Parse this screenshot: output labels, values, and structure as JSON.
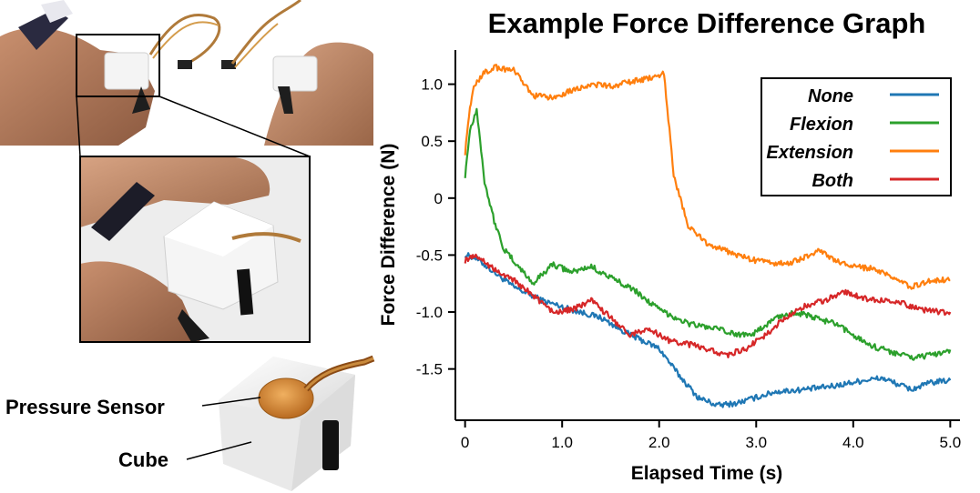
{
  "photo_panel": {
    "callouts": {
      "pressure_sensor": "Pressure Sensor",
      "cube": "Cube"
    }
  },
  "chart_data": {
    "type": "line",
    "title": "Example Force Difference Graph",
    "xlabel": "Elapsed Time (s)",
    "ylabel": "Force Difference (N)",
    "xlim": [
      -0.1,
      5.1
    ],
    "ylim": [
      -1.95,
      1.3
    ],
    "xticks": [
      0,
      1,
      2,
      3,
      4,
      5
    ],
    "xtick_labels": [
      "0",
      "1.0",
      "2.0",
      "3.0",
      "4.0",
      "5.0"
    ],
    "yticks": [
      1.0,
      0.5,
      0,
      -0.5,
      -1.0,
      -1.5
    ],
    "ytick_labels": [
      "1.0",
      "0.5",
      "0",
      "-0.5",
      "-1.0",
      "-1.5"
    ],
    "grid": false,
    "legend_position": "top-right",
    "series": [
      {
        "name": "None",
        "color": "#1f77b4",
        "x": [
          0,
          0.1,
          0.3,
          0.5,
          0.8,
          1.1,
          1.4,
          1.7,
          2.0,
          2.2,
          2.4,
          2.6,
          2.8,
          3.0,
          3.2,
          3.5,
          3.8,
          4.1,
          4.3,
          4.6,
          4.8,
          5.0
        ],
        "y": [
          -0.5,
          -0.52,
          -0.65,
          -0.78,
          -0.9,
          -0.98,
          -1.05,
          -1.2,
          -1.32,
          -1.55,
          -1.75,
          -1.82,
          -1.8,
          -1.75,
          -1.7,
          -1.68,
          -1.65,
          -1.6,
          -1.58,
          -1.68,
          -1.62,
          -1.6
        ]
      },
      {
        "name": "Flexion",
        "color": "#2ca02c",
        "x": [
          0,
          0.05,
          0.12,
          0.2,
          0.3,
          0.4,
          0.5,
          0.7,
          0.9,
          1.1,
          1.3,
          1.5,
          1.7,
          2.0,
          2.3,
          2.6,
          2.8,
          3.0,
          3.2,
          3.4,
          3.6,
          3.8,
          4.0,
          4.2,
          4.4,
          4.6,
          4.8,
          5.0
        ],
        "y": [
          0.2,
          0.6,
          0.78,
          0.15,
          -0.2,
          -0.45,
          -0.55,
          -0.75,
          -0.58,
          -0.65,
          -0.6,
          -0.7,
          -0.78,
          -0.98,
          -1.1,
          -1.15,
          -1.2,
          -1.18,
          -1.05,
          -1.0,
          -1.05,
          -1.1,
          -1.2,
          -1.3,
          -1.35,
          -1.4,
          -1.38,
          -1.33
        ]
      },
      {
        "name": "Extension",
        "color": "#ff7f0e",
        "x": [
          0,
          0.05,
          0.1,
          0.2,
          0.3,
          0.5,
          0.7,
          0.9,
          1.1,
          1.3,
          1.5,
          1.7,
          1.9,
          2.05,
          2.15,
          2.3,
          2.5,
          2.8,
          3.0,
          3.3,
          3.5,
          3.65,
          3.8,
          4.0,
          4.2,
          4.4,
          4.6,
          4.8,
          5.0
        ],
        "y": [
          0.4,
          0.8,
          1.0,
          1.1,
          1.15,
          1.12,
          0.9,
          0.88,
          0.95,
          1.0,
          0.98,
          1.02,
          1.05,
          1.1,
          0.2,
          -0.25,
          -0.4,
          -0.5,
          -0.55,
          -0.58,
          -0.52,
          -0.45,
          -0.55,
          -0.6,
          -0.62,
          -0.7,
          -0.78,
          -0.72,
          -0.72
        ]
      },
      {
        "name": "Both",
        "color": "#d62728",
        "x": [
          0,
          0.05,
          0.1,
          0.3,
          0.5,
          0.7,
          0.9,
          1.1,
          1.3,
          1.5,
          1.7,
          1.9,
          2.1,
          2.4,
          2.7,
          2.9,
          3.1,
          3.3,
          3.5,
          3.7,
          3.9,
          4.1,
          4.3,
          4.5,
          4.7,
          4.9,
          5.0
        ],
        "y": [
          -0.55,
          -0.52,
          -0.5,
          -0.62,
          -0.72,
          -0.85,
          -1.0,
          -0.98,
          -0.9,
          -1.05,
          -1.2,
          -1.15,
          -1.25,
          -1.3,
          -1.38,
          -1.32,
          -1.2,
          -1.05,
          -0.95,
          -0.9,
          -0.82,
          -0.88,
          -0.9,
          -0.92,
          -0.98,
          -1.0,
          -1.0
        ]
      }
    ]
  }
}
